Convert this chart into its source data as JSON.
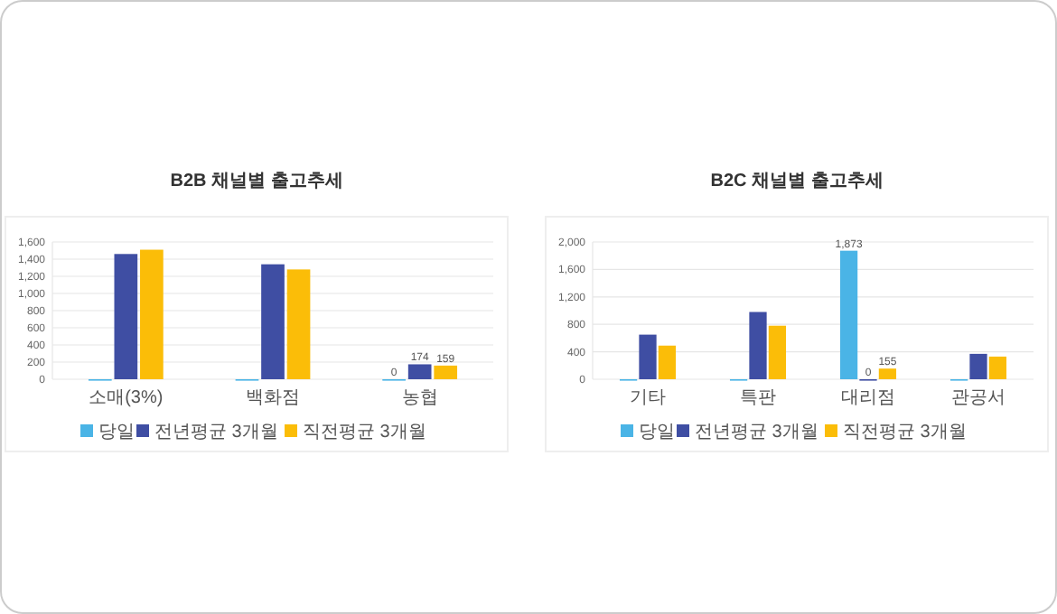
{
  "chart_data": [
    {
      "type": "bar",
      "title": "B2B 채널별 출고추세",
      "categories": [
        "소매(3%)",
        "백화점",
        "농협"
      ],
      "ylim": [
        0,
        1600
      ],
      "yticks": [
        0,
        {
          "value": 200,
          "label": "200"
        },
        {
          "value": 400,
          "label": "400"
        },
        {
          "value": 600,
          "label": "600"
        },
        {
          "value": 800,
          "label": "800"
        },
        {
          "value": 1000,
          "label": "1,000"
        },
        {
          "value": 1200,
          "label": "1,200"
        },
        {
          "value": 1400,
          "label": "1,400"
        },
        {
          "value": 1600,
          "label": "1,600"
        }
      ],
      "grid": "y",
      "legend": "bottom",
      "series": [
        {
          "name": "당일",
          "color": "#4ab4e6",
          "values": [
            0,
            0,
            0
          ],
          "value_labels": [
            null,
            null,
            "0"
          ]
        },
        {
          "name": "전년평균 3개월",
          "color": "#3f4ea3",
          "values": [
            1460,
            1340,
            174
          ],
          "value_labels": [
            null,
            null,
            "174"
          ]
        },
        {
          "name": "직전평균 3개월",
          "color": "#fbbd08",
          "values": [
            1510,
            1280,
            159
          ],
          "value_labels": [
            null,
            null,
            "159"
          ]
        }
      ]
    },
    {
      "type": "bar",
      "title": "B2C 채널별 출고추세",
      "categories": [
        "기타",
        "특판",
        "대리점",
        "관공서"
      ],
      "ylim": [
        0,
        2000
      ],
      "yticks": [
        0,
        {
          "value": 400,
          "label": "400"
        },
        {
          "value": 800,
          "label": "800"
        },
        {
          "value": 1200,
          "label": "1,200"
        },
        {
          "value": 1600,
          "label": "1,600"
        },
        {
          "value": 2000,
          "label": "2,000"
        }
      ],
      "grid": "y",
      "legend": "bottom",
      "series": [
        {
          "name": "당일",
          "color": "#4ab4e6",
          "values": [
            0,
            0,
            1873,
            0
          ],
          "value_labels": [
            null,
            null,
            "1,873",
            null
          ]
        },
        {
          "name": "전년평균 3개월",
          "color": "#3f4ea3",
          "values": [
            650,
            980,
            0,
            370
          ],
          "value_labels": [
            null,
            null,
            "0",
            null
          ]
        },
        {
          "name": "직전평균 3개월",
          "color": "#fbbd08",
          "values": [
            490,
            780,
            155,
            330
          ],
          "value_labels": [
            null,
            null,
            "155",
            null
          ]
        }
      ]
    }
  ]
}
